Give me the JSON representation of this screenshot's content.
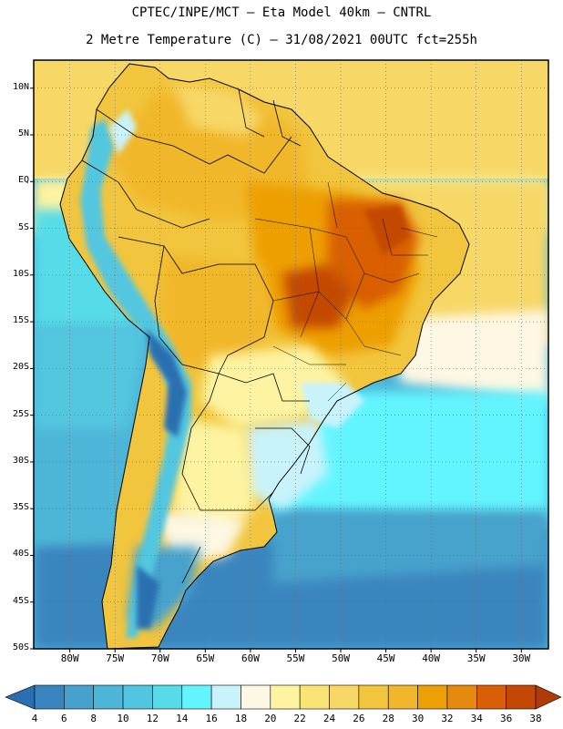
{
  "header": {
    "line1": "CPTEC/INPE/MCT –  Eta Model 40km – CNTRL",
    "line2": "2 Metre Temperature (C) – 31/08/2021 00UTC fct=255h"
  },
  "axes": {
    "lat_labels": [
      "10N",
      "5N",
      "EQ",
      "5S",
      "10S",
      "15S",
      "20S",
      "25S",
      "30S",
      "35S",
      "40S",
      "45S",
      "50S"
    ],
    "lon_labels": [
      "80W",
      "75W",
      "70W",
      "65W",
      "60W",
      "55W",
      "50W",
      "45W",
      "40W",
      "35W",
      "30W"
    ]
  },
  "colorbar": {
    "labels": [
      "4",
      "6",
      "8",
      "10",
      "12",
      "14",
      "16",
      "18",
      "20",
      "22",
      "24",
      "26",
      "28",
      "30",
      "32",
      "34",
      "36",
      "38"
    ],
    "colors": [
      "#2a6fb0",
      "#3a85bf",
      "#46a2cc",
      "#4db6d8",
      "#52c6e0",
      "#57dbe8",
      "#63f5ff",
      "#c8f3fb",
      "#fdf7e3",
      "#fdf3a0",
      "#fbe476",
      "#f7d766",
      "#f1c53d",
      "#f1b72c",
      "#ed9f06",
      "#e58a0f",
      "#d95e05",
      "#c44805",
      "#b03a08"
    ]
  },
  "map": {
    "projection": "cylindrical",
    "lon_range": [
      -84,
      -27
    ],
    "lat_range": [
      -50,
      13
    ],
    "temperature_regions_C": [
      {
        "region": "ocean_equatorial_atlantic",
        "value": 28
      },
      {
        "region": "amazon_basin",
        "value": 30
      },
      {
        "region": "central_brazil",
        "value": 36
      },
      {
        "region": "northeast_brazil",
        "value": 34
      },
      {
        "region": "andes_north",
        "value": 16
      },
      {
        "region": "andes_south",
        "value": 10
      },
      {
        "region": "southern_brazil_uruguay",
        "value": 18
      },
      {
        "region": "patagonia",
        "value": 8
      },
      {
        "region": "south_pacific",
        "value": 10
      },
      {
        "region": "south_atlantic",
        "value": 12
      }
    ]
  }
}
